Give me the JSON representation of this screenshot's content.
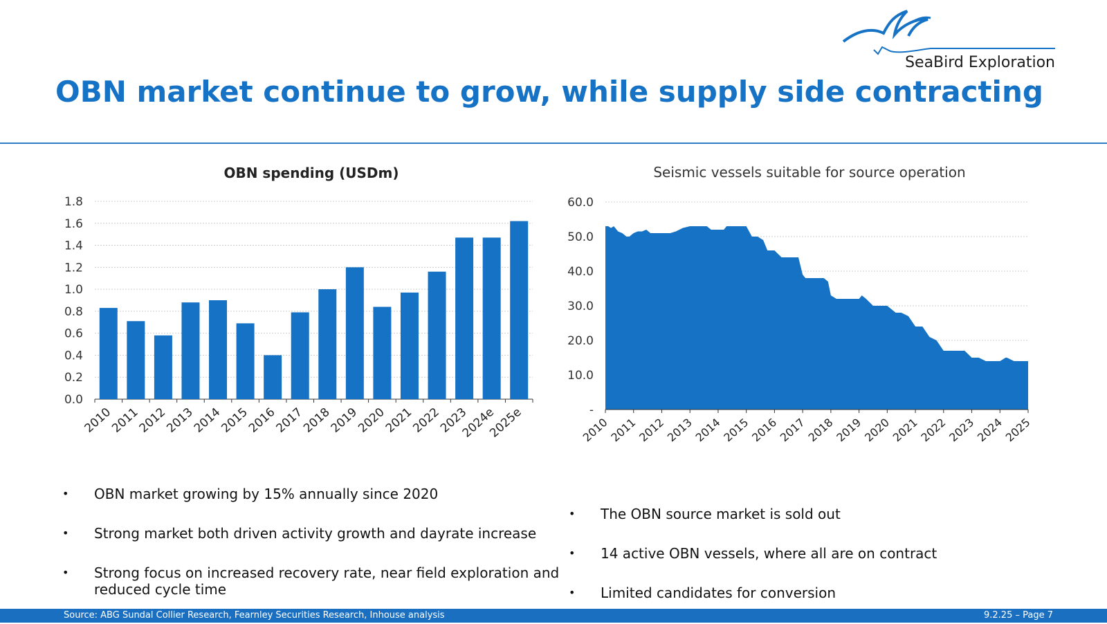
{
  "logo": {
    "text": "SeaBird Exploration"
  },
  "title": "OBN market continue to grow, while supply side contracting",
  "chart_data": [
    {
      "type": "bar",
      "title": "OBN spending (USDm)",
      "categories": [
        "2010",
        "2011",
        "2012",
        "2013",
        "2014",
        "2015",
        "2016",
        "2017",
        "2018",
        "2019",
        "2020",
        "2021",
        "2022",
        "2023",
        "2024e",
        "2025e"
      ],
      "values": [
        0.83,
        0.71,
        0.58,
        0.88,
        0.9,
        0.69,
        0.4,
        0.79,
        1.0,
        1.2,
        0.84,
        0.97,
        1.16,
        1.47,
        1.47,
        1.62
      ],
      "ylim": [
        0,
        1.8
      ],
      "yticks": [
        "0.0",
        "0.2",
        "0.4",
        "0.6",
        "0.8",
        "1.0",
        "1.2",
        "1.4",
        "1.6",
        "1.8"
      ],
      "xlabel": "",
      "ylabel": "",
      "color": "#1672c4"
    },
    {
      "type": "area",
      "title": "Seismic vessels suitable for source operation",
      "ylim": [
        0,
        60
      ],
      "yticks": [
        "-",
        "10.0",
        "20.0",
        "30.0",
        "40.0",
        "50.0",
        "60.0"
      ],
      "xticks": [
        "2010",
        "2011",
        "2012",
        "2013",
        "2014",
        "2015",
        "2016",
        "2017",
        "2018",
        "2019",
        "2020",
        "2021",
        "2022",
        "2023",
        "2024",
        "2025"
      ],
      "x": [
        2010,
        2010.1,
        2010.2,
        2010.3,
        2010.45,
        2010.6,
        2010.75,
        2010.85,
        2011,
        2011.15,
        2011.3,
        2011.45,
        2011.6,
        2011.75,
        2011.9,
        2012,
        2012.3,
        2012.5,
        2012.75,
        2013,
        2013.3,
        2013.6,
        2013.75,
        2014,
        2014.2,
        2014.3,
        2014.55,
        2014.75,
        2015,
        2015.2,
        2015.4,
        2015.6,
        2015.75,
        2016,
        2016.25,
        2016.5,
        2016.75,
        2016.85,
        2017,
        2017.1,
        2017.25,
        2017.5,
        2017.75,
        2017.9,
        2018,
        2018.2,
        2018.35,
        2018.5,
        2018.75,
        2019,
        2019.1,
        2019.25,
        2019.5,
        2019.75,
        2020,
        2020.3,
        2020.5,
        2020.75,
        2021,
        2021.25,
        2021.5,
        2021.75,
        2022,
        2022.25,
        2022.5,
        2022.75,
        2023,
        2023.25,
        2023.5,
        2023.75,
        2024,
        2024.2,
        2024.25,
        2024.5,
        2024.75,
        2025
      ],
      "values": [
        53,
        53,
        52.5,
        53,
        51.5,
        51,
        50,
        50,
        51,
        51.5,
        51.5,
        52,
        51,
        51,
        51,
        51,
        51,
        51.5,
        52.5,
        53,
        53,
        53,
        52,
        52,
        52,
        53,
        53,
        53,
        53,
        50,
        50,
        49,
        46,
        46,
        44,
        44,
        44,
        44,
        39,
        38,
        38,
        38,
        38,
        37,
        33,
        32,
        32,
        32,
        32,
        32,
        33,
        32,
        30,
        30,
        30,
        28,
        28,
        27,
        24,
        24,
        21,
        20,
        17,
        17,
        17,
        17,
        15,
        15,
        14,
        14,
        14,
        15,
        15,
        14,
        14,
        14
      ],
      "xlabel": "",
      "ylabel": "",
      "color": "#1672c4"
    }
  ],
  "bullets_left": [
    "OBN market growing by 15% annually since 2020",
    "Strong market both driven activity growth and dayrate increase",
    "Strong focus on increased recovery rate, near field exploration and reduced cycle time"
  ],
  "bullets_right": [
    "The OBN source market is sold out",
    "14 active OBN vessels, where all are on contract",
    "Limited candidates for conversion"
  ],
  "footer": {
    "source": "Source: ABG Sundal Collier Research, Fearnley Securities Research, Inhouse analysis",
    "page": "9.2.25 – Page 7"
  }
}
